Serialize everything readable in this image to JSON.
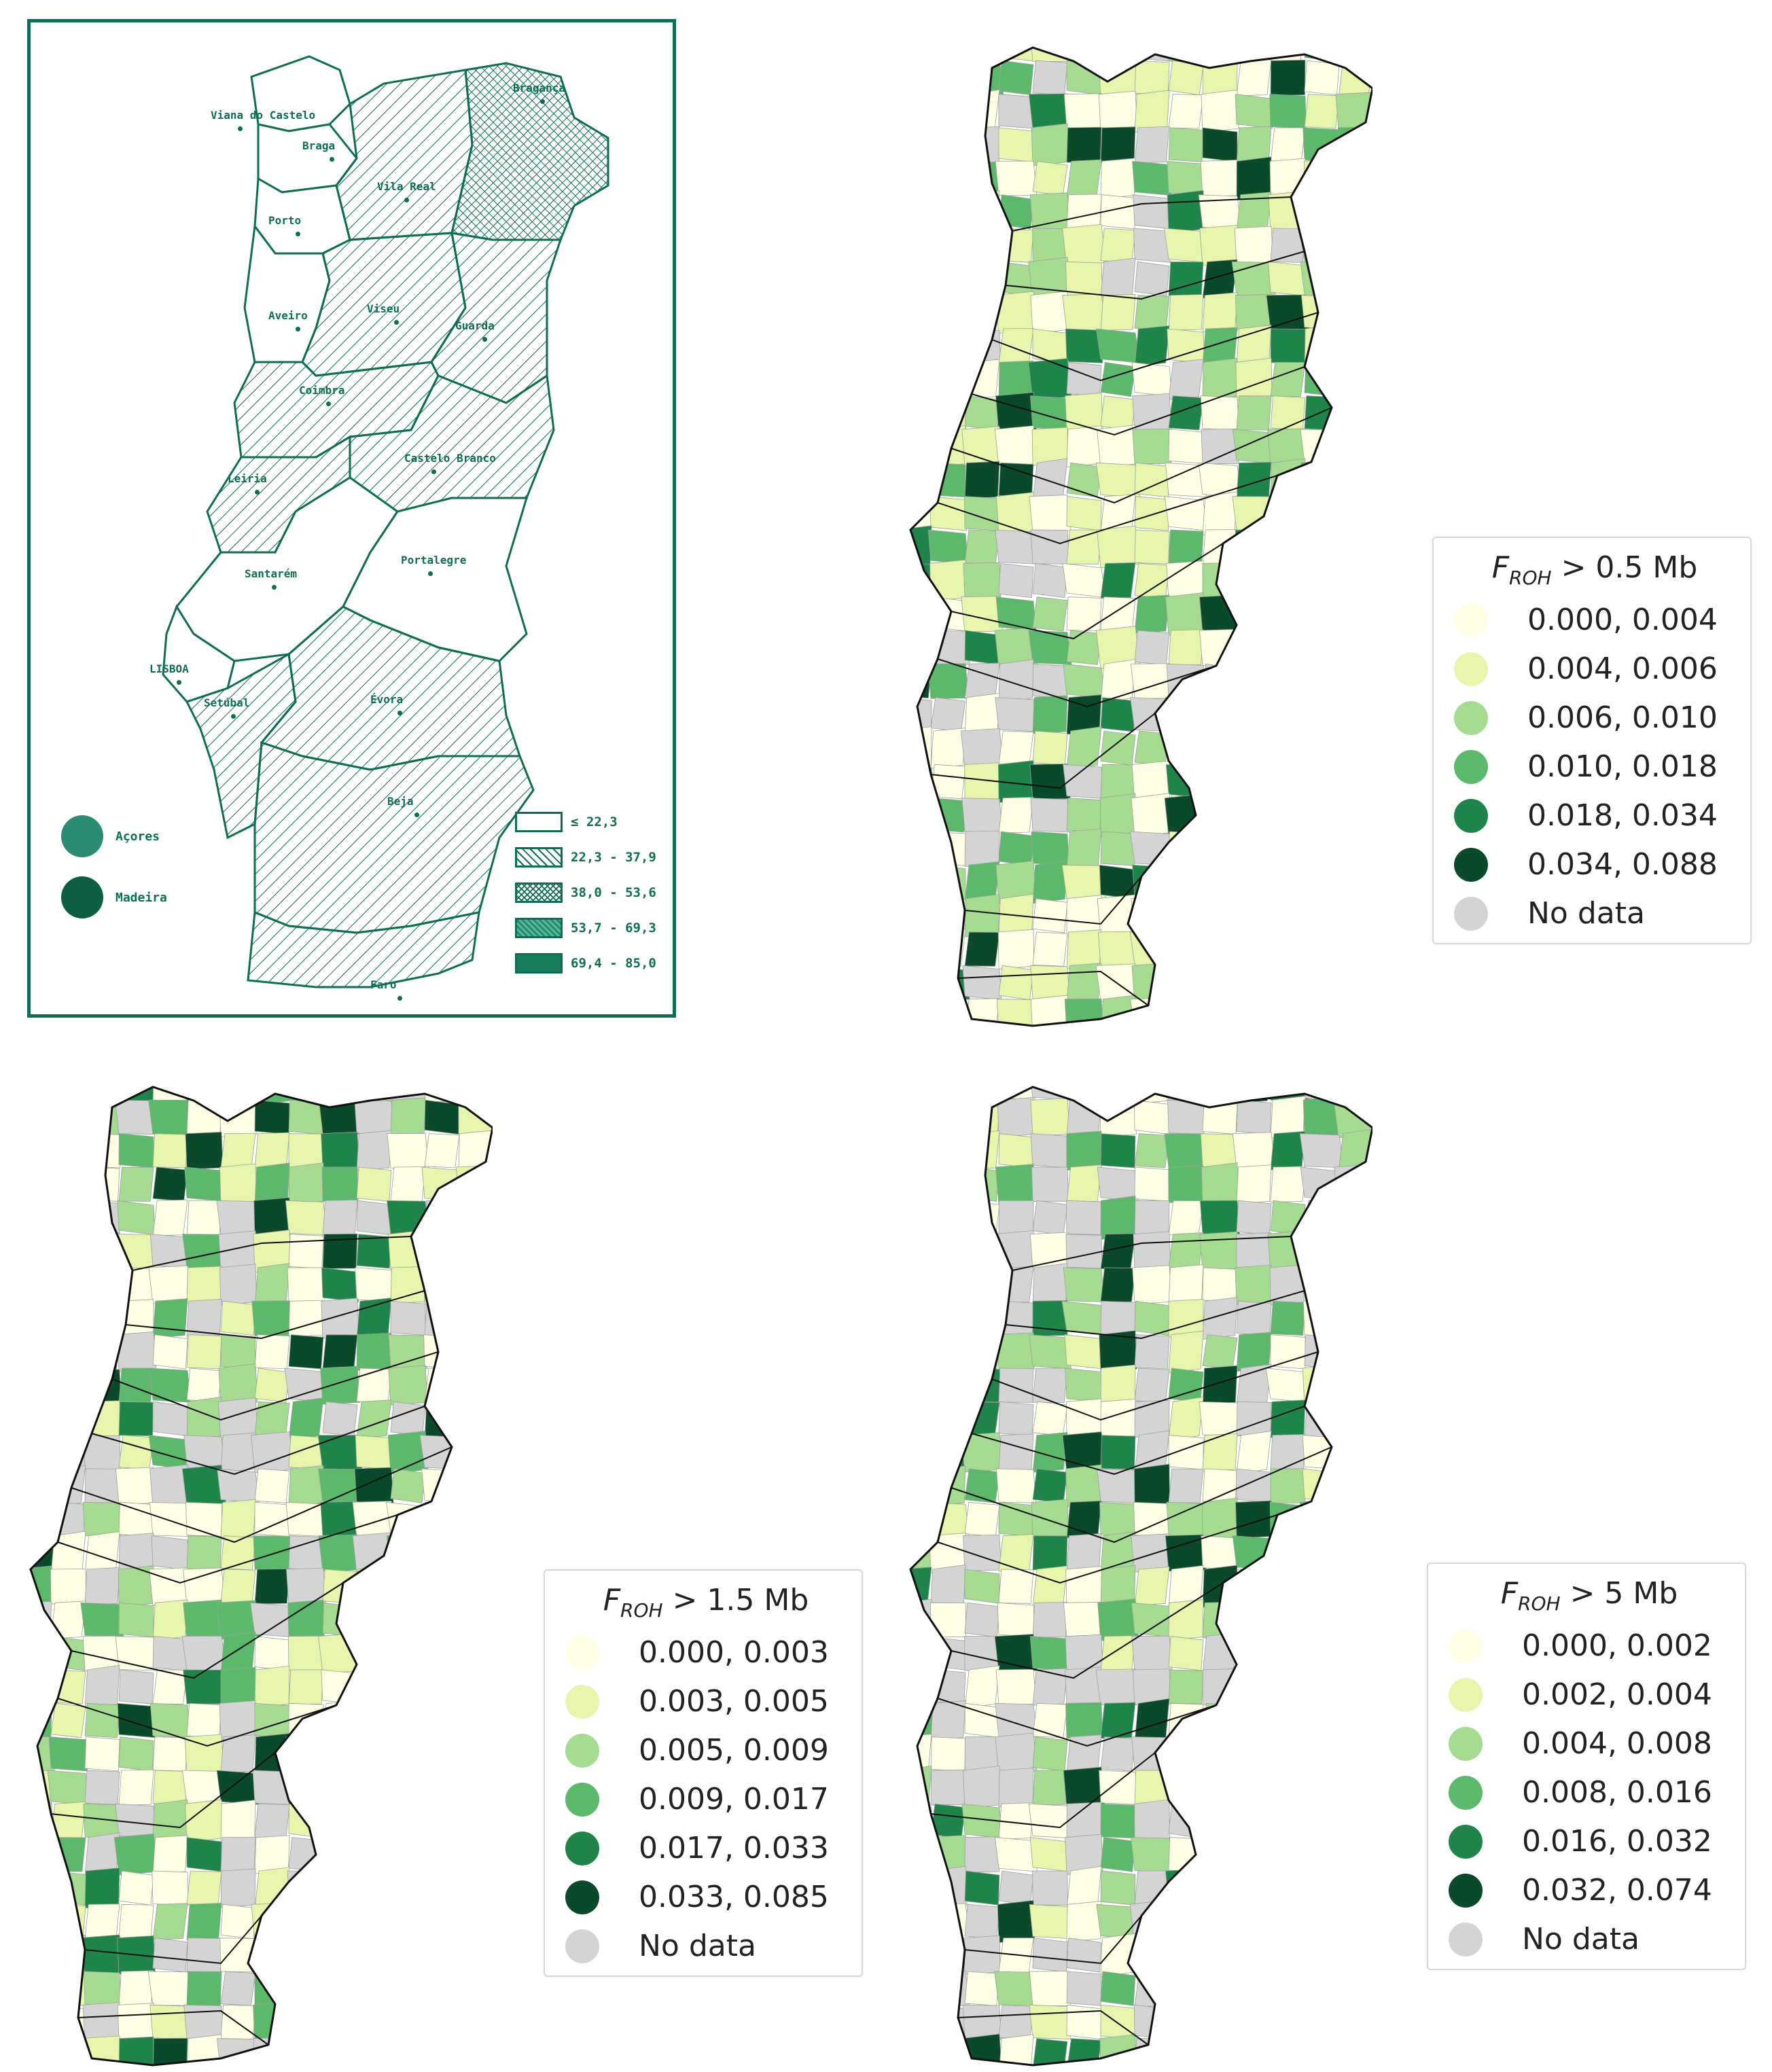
{
  "historical_map": {
    "cities": [
      {
        "name": "Viana do Castelo"
      },
      {
        "name": "Braga"
      },
      {
        "name": "Bragança"
      },
      {
        "name": "Porto"
      },
      {
        "name": "Vila Real"
      },
      {
        "name": "Aveiro"
      },
      {
        "name": "Viseu"
      },
      {
        "name": "Guarda"
      },
      {
        "name": "Coimbra"
      },
      {
        "name": "Leiria"
      },
      {
        "name": "Castelo Branco"
      },
      {
        "name": "Santarém"
      },
      {
        "name": "Portalegre"
      },
      {
        "name": "LISBOA"
      },
      {
        "name": "Setúbal"
      },
      {
        "name": "Évora"
      },
      {
        "name": "Beja"
      },
      {
        "name": "Faro"
      }
    ],
    "islands": [
      {
        "name": "Açores",
        "color": "#2a8c72"
      },
      {
        "name": "Madeira",
        "color": "#0e5e44"
      }
    ],
    "legend": [
      {
        "label": "≤ 22,3",
        "pattern": "none"
      },
      {
        "label": "22,3 - 37,9",
        "pattern": "hatch"
      },
      {
        "label": "38,0 - 53,6",
        "pattern": "cross"
      },
      {
        "label": "53,7 - 69,3",
        "pattern": "dense"
      },
      {
        "label": "69,4 - 85,0",
        "pattern": "solid"
      }
    ]
  },
  "maps": [
    {
      "title_var": "F",
      "title_sub": "ROH",
      "title_rest": " > 0.5 Mb",
      "classes": [
        "0.000, 0.004",
        "0.004, 0.006",
        "0.006, 0.010",
        "0.010, 0.018",
        "0.018, 0.034",
        "0.034, 0.088",
        "No data"
      ]
    },
    {
      "title_var": "F",
      "title_sub": "ROH",
      "title_rest": " > 1.5 Mb",
      "classes": [
        "0.000, 0.003",
        "0.003, 0.005",
        "0.005, 0.009",
        "0.009, 0.017",
        "0.017, 0.033",
        "0.033, 0.085",
        "No data"
      ]
    },
    {
      "title_var": "F",
      "title_sub": "ROH",
      "title_rest": " > 5 Mb",
      "classes": [
        "0.000, 0.002",
        "0.002, 0.004",
        "0.004, 0.008",
        "0.008, 0.016",
        "0.016, 0.032",
        "0.032, 0.074",
        "No data"
      ]
    }
  ],
  "palette": [
    "#ffffe5",
    "#e8f5ad",
    "#a6db92",
    "#5cb86a",
    "#1f844a",
    "#0a4a2a",
    "#d4d4d4"
  ]
}
